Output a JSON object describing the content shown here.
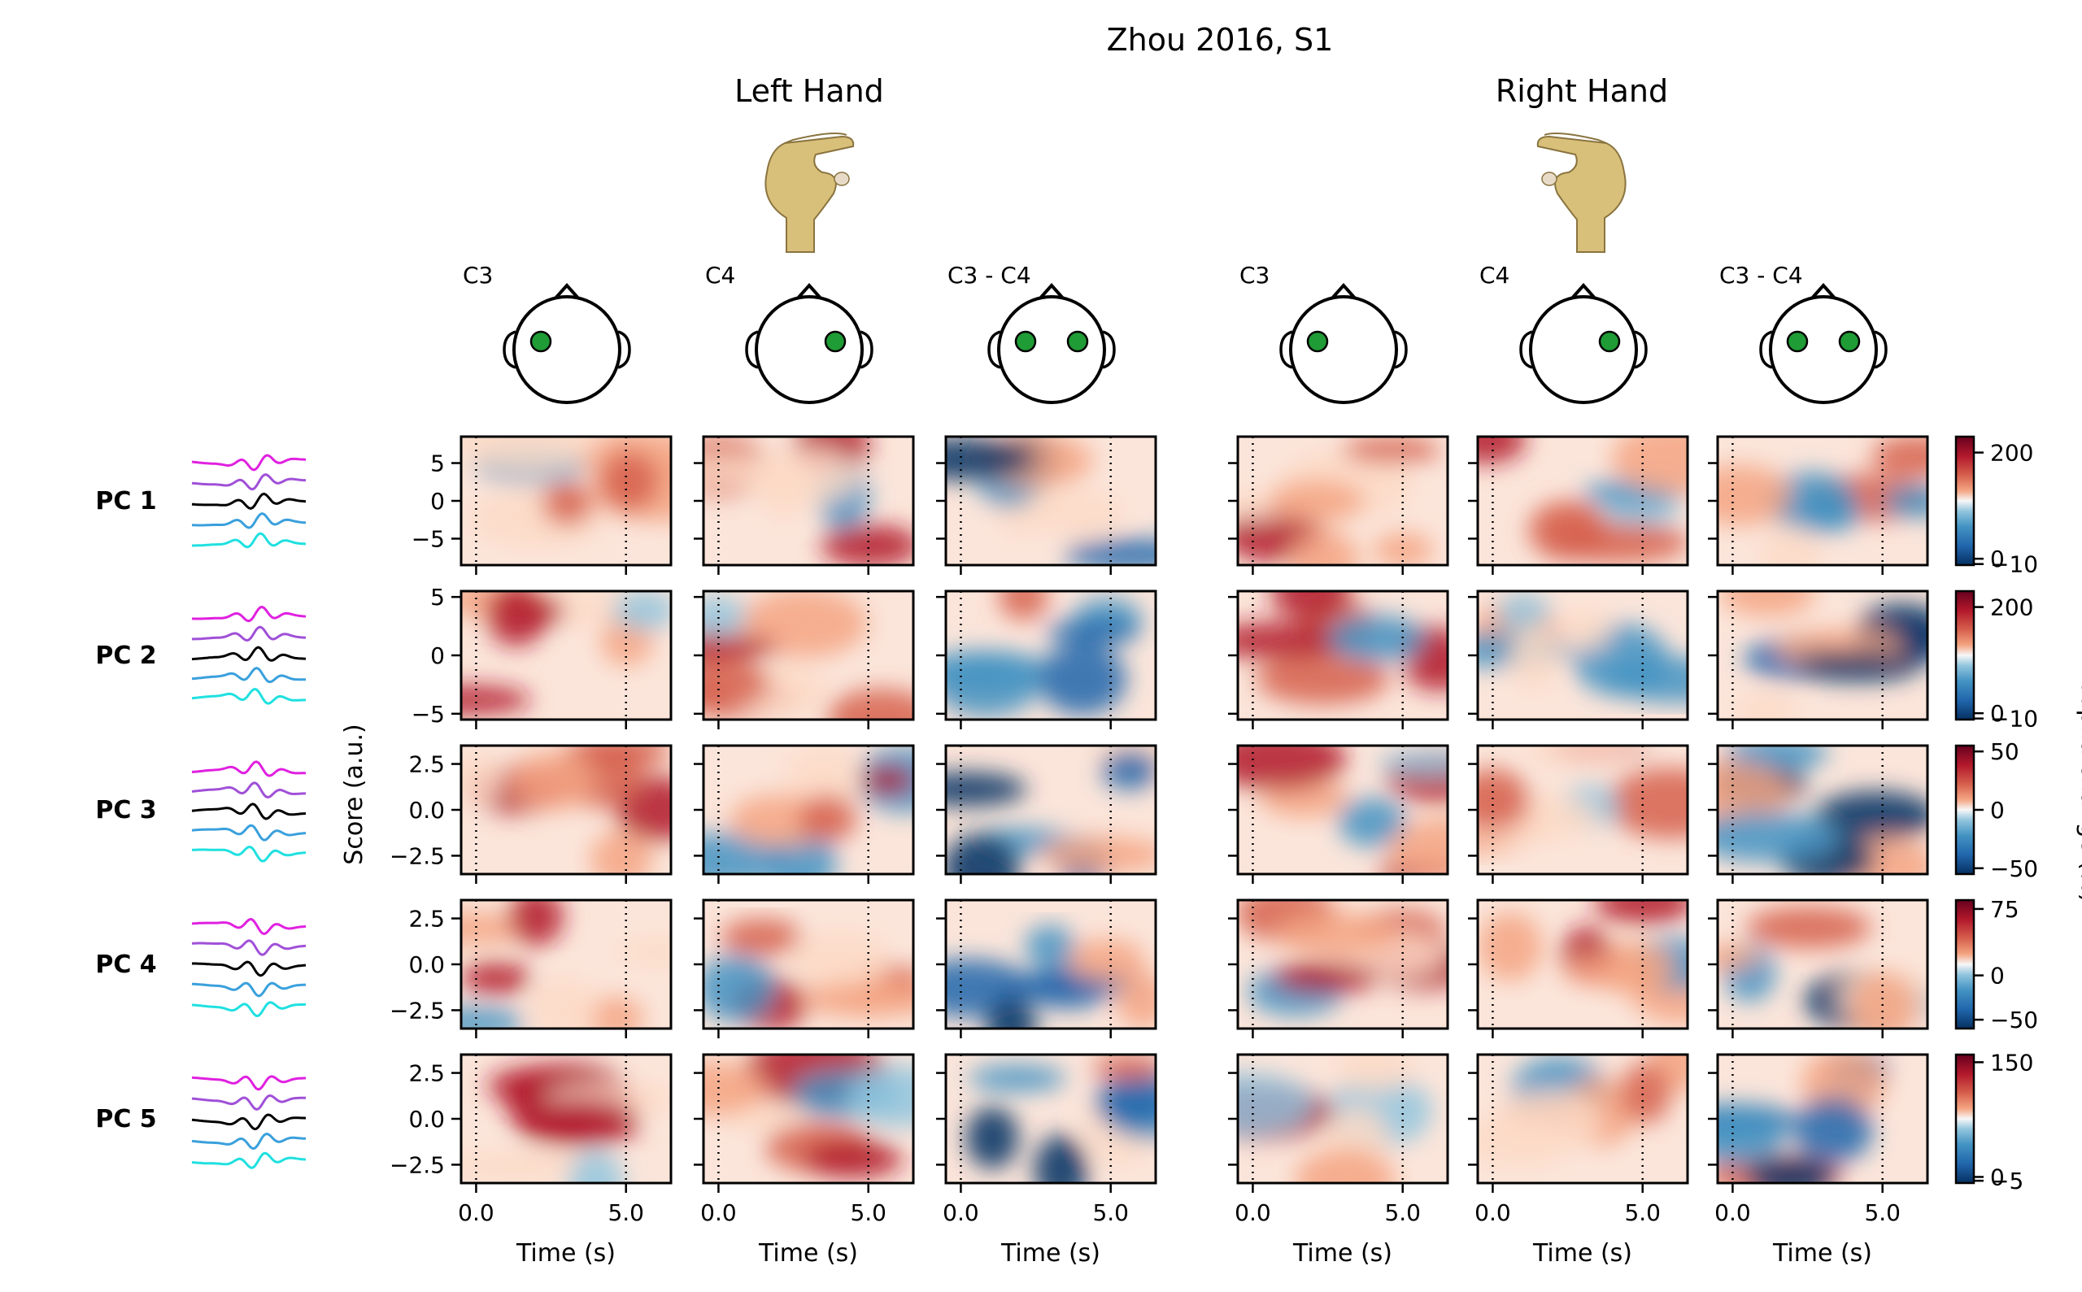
{
  "figure": {
    "title": "Zhou 2016, S1",
    "group_titles": [
      "Left Hand",
      "Right Hand"
    ],
    "column_labels": [
      "C3",
      "C4",
      "C3 - C4",
      "C3",
      "C4",
      "C3 - C4"
    ],
    "ylabel": "Score (a.u.)",
    "xlabel": "Time (s)",
    "xticks": [
      "0.0",
      "5.0"
    ],
    "row_labels": [
      "PC 1",
      "PC 2",
      "PC 3",
      "PC 4",
      "PC 5"
    ],
    "colorbar_label": "Alpha change (%)"
  },
  "colors": {
    "red": "#67001f",
    "blue": "#053061",
    "electrode": "#1f9c35",
    "hand_fill": "#d9c07a",
    "waveform_series": [
      "#e020e0",
      "#a050d8",
      "#000000",
      "#3aa0dc",
      "#20e0e0"
    ]
  },
  "chart_data": {
    "type": "heatmap",
    "colormap": "RdBu_r",
    "x_range": [
      -0.5,
      6.5
    ],
    "cue_lines_x": [
      0.0,
      5.0
    ],
    "rows": [
      {
        "label": "PC 1",
        "yticks": [
          "5",
          "0",
          "−5"
        ],
        "yrange": [
          -8.5,
          8.5
        ],
        "ytick_values": [
          5,
          0,
          -5
        ],
        "colorbar_ticks": [
          "200",
          "0",
          "−10"
        ],
        "colorbar_values": [
          200,
          0,
          -10
        ],
        "colorbar_range": [
          -12,
          230
        ]
      },
      {
        "label": "PC 2",
        "yticks": [
          "5",
          "0",
          "−5"
        ],
        "yrange": [
          -5.5,
          5.5
        ],
        "ytick_values": [
          5,
          0,
          -5
        ],
        "colorbar_ticks": [
          "200",
          "0",
          "−10"
        ],
        "colorbar_values": [
          200,
          0,
          -10
        ],
        "colorbar_range": [
          -12,
          230
        ]
      },
      {
        "label": "PC 3",
        "yticks": [
          "2.5",
          "0.0",
          "−2.5"
        ],
        "yrange": [
          -3.5,
          3.5
        ],
        "ytick_values": [
          2.5,
          0,
          -2.5
        ],
        "colorbar_ticks": [
          "50",
          "0",
          "−50"
        ],
        "colorbar_values": [
          50,
          0,
          -50
        ],
        "colorbar_range": [
          -55,
          55
        ]
      },
      {
        "label": "PC 4",
        "yticks": [
          "2.5",
          "0.0",
          "−2.5"
        ],
        "yrange": [
          -3.5,
          3.5
        ],
        "ytick_values": [
          2.5,
          0,
          -2.5
        ],
        "colorbar_ticks": [
          "75",
          "0",
          "−50"
        ],
        "colorbar_values": [
          75,
          0,
          -50
        ],
        "colorbar_range": [
          -60,
          85
        ]
      },
      {
        "label": "PC 5",
        "yticks": [
          "2.5",
          "0.0",
          "−2.5"
        ],
        "yrange": [
          -3.5,
          3.5
        ],
        "ytick_values": [
          2.5,
          0,
          -2.5
        ],
        "colorbar_ticks": [
          "150",
          "0",
          "−5"
        ],
        "colorbar_values": [
          150,
          0,
          -5
        ],
        "colorbar_range": [
          -8,
          160
        ]
      }
    ],
    "columns": [
      {
        "hand": "Left Hand",
        "channel": "C3"
      },
      {
        "hand": "Left Hand",
        "channel": "C4"
      },
      {
        "hand": "Left Hand",
        "channel": "C3 - C4"
      },
      {
        "hand": "Right Hand",
        "channel": "C3"
      },
      {
        "hand": "Right Hand",
        "channel": "C4"
      },
      {
        "hand": "Right Hand",
        "channel": "C3 - C4"
      }
    ]
  }
}
